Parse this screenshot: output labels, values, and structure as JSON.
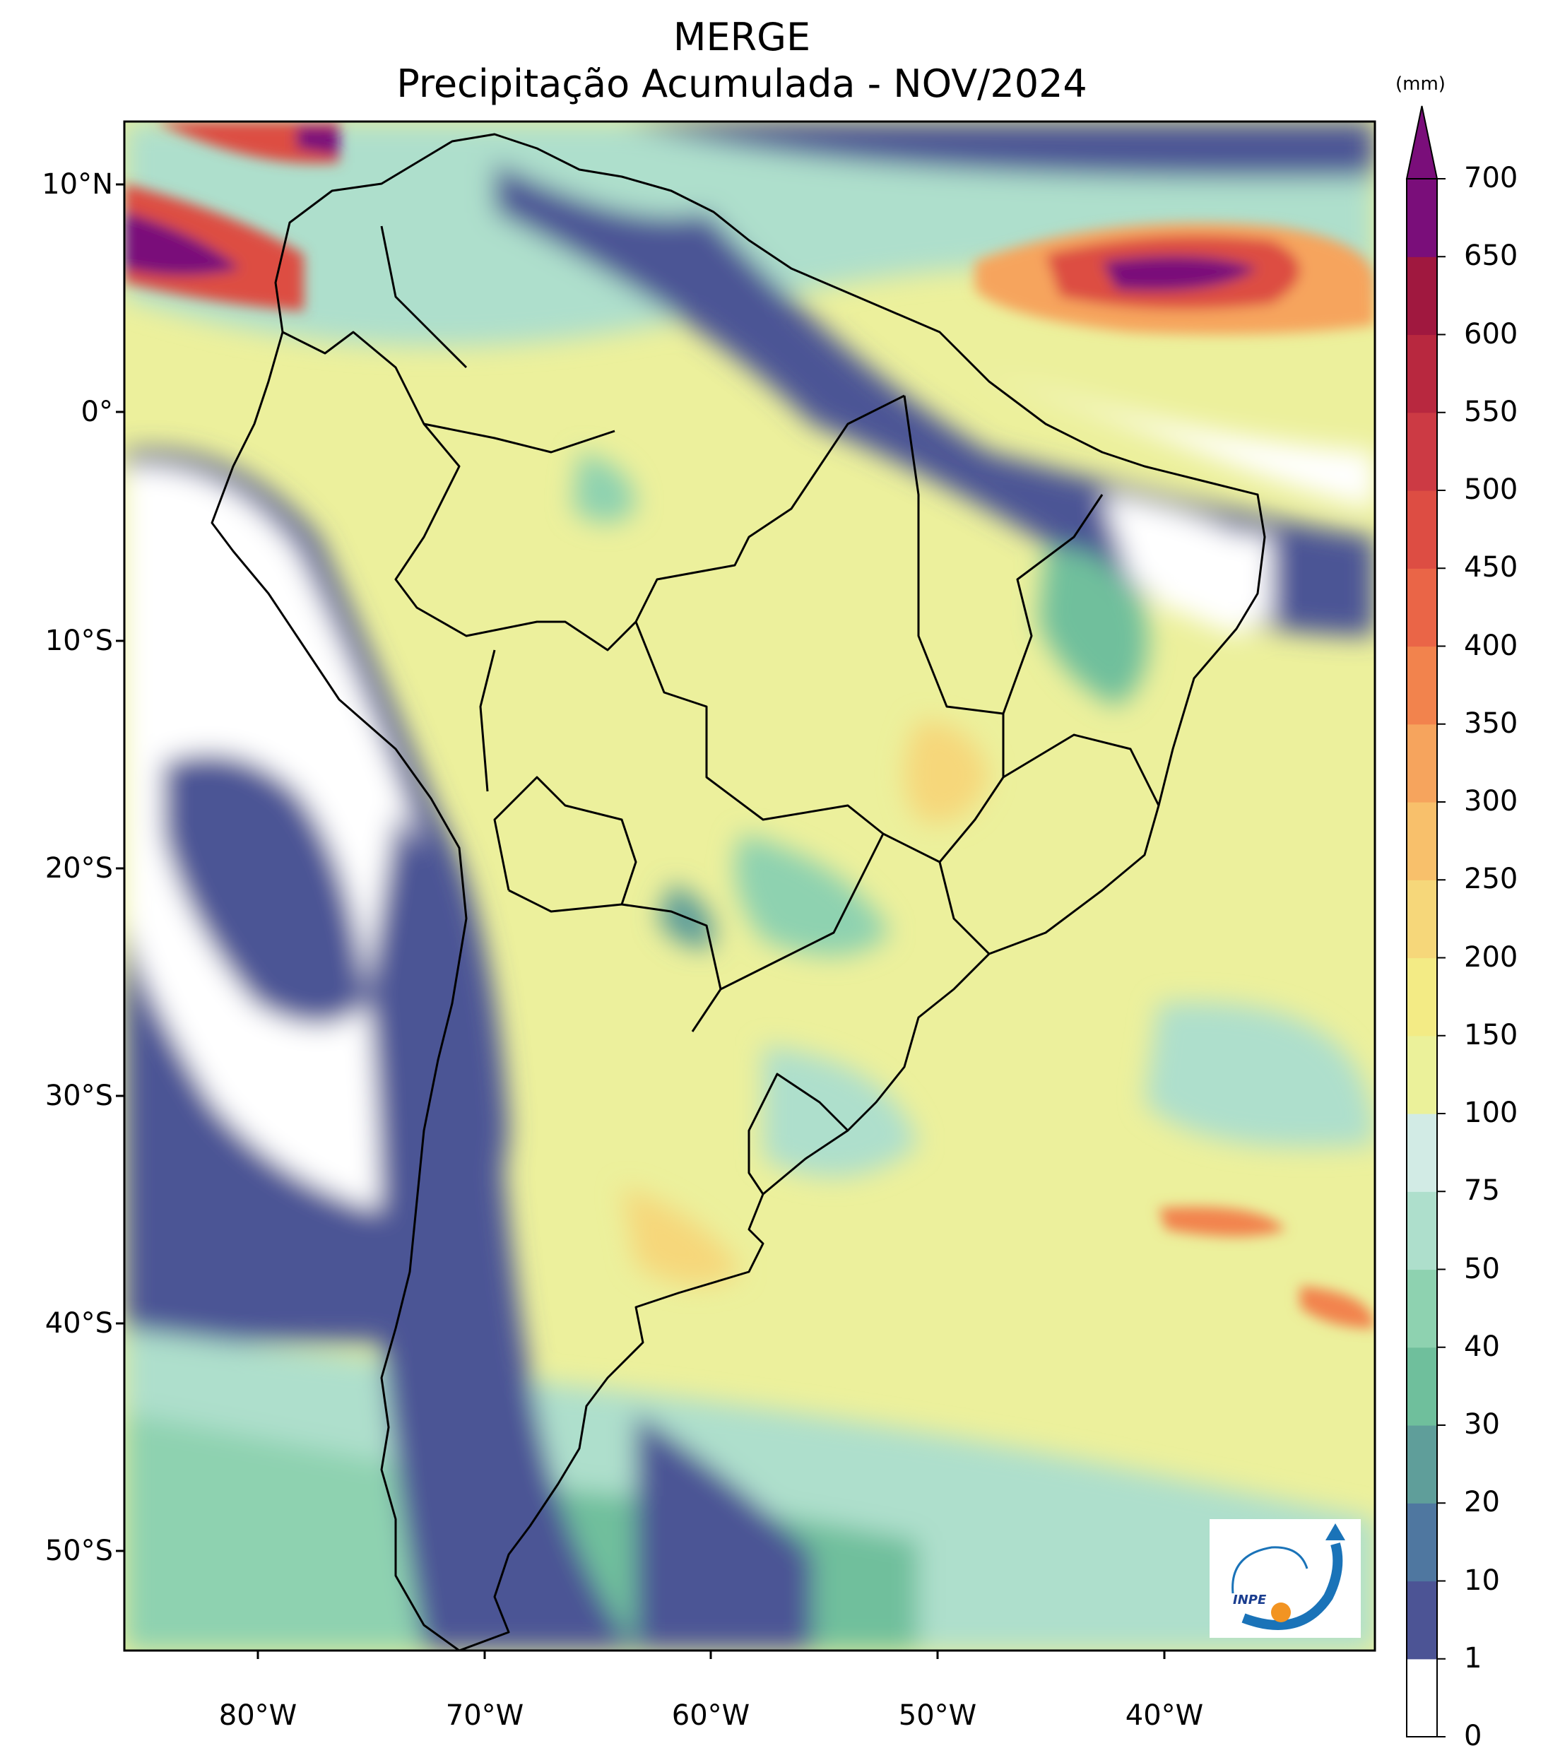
{
  "title": {
    "line1": "MERGE",
    "line2": "Precipitação Acumulada - NOV/2024"
  },
  "map": {
    "latitude_labels": [
      "10°N",
      "0°",
      "10°S",
      "20°S",
      "30°S",
      "40°S",
      "50°S"
    ],
    "longitude_labels": [
      "80°W",
      "70°W",
      "60°W",
      "50°W",
      "40°W"
    ],
    "logo_text": "INPE"
  },
  "colorbar": {
    "unit": "(mm)",
    "ticks": [
      "0",
      "1",
      "10",
      "20",
      "30",
      "40",
      "50",
      "75",
      "100",
      "150",
      "200",
      "250",
      "300",
      "350",
      "400",
      "450",
      "500",
      "550",
      "600",
      "650",
      "700"
    ],
    "colors": [
      "#ffffff",
      "#4c5495",
      "#4f77a0",
      "#5f9e9a",
      "#6fbf9c",
      "#8ed2b0",
      "#aedfcc",
      "#d2ebe5",
      "#ebf19a",
      "#f3eb85",
      "#f6d77a",
      "#f8c06b",
      "#f6a45d",
      "#f2834d",
      "#ea6547",
      "#dd4d43",
      "#cc3a44",
      "#b8283f",
      "#a0183f",
      "#7a0e7a"
    ],
    "extend_color": "#7a0e7a"
  }
}
